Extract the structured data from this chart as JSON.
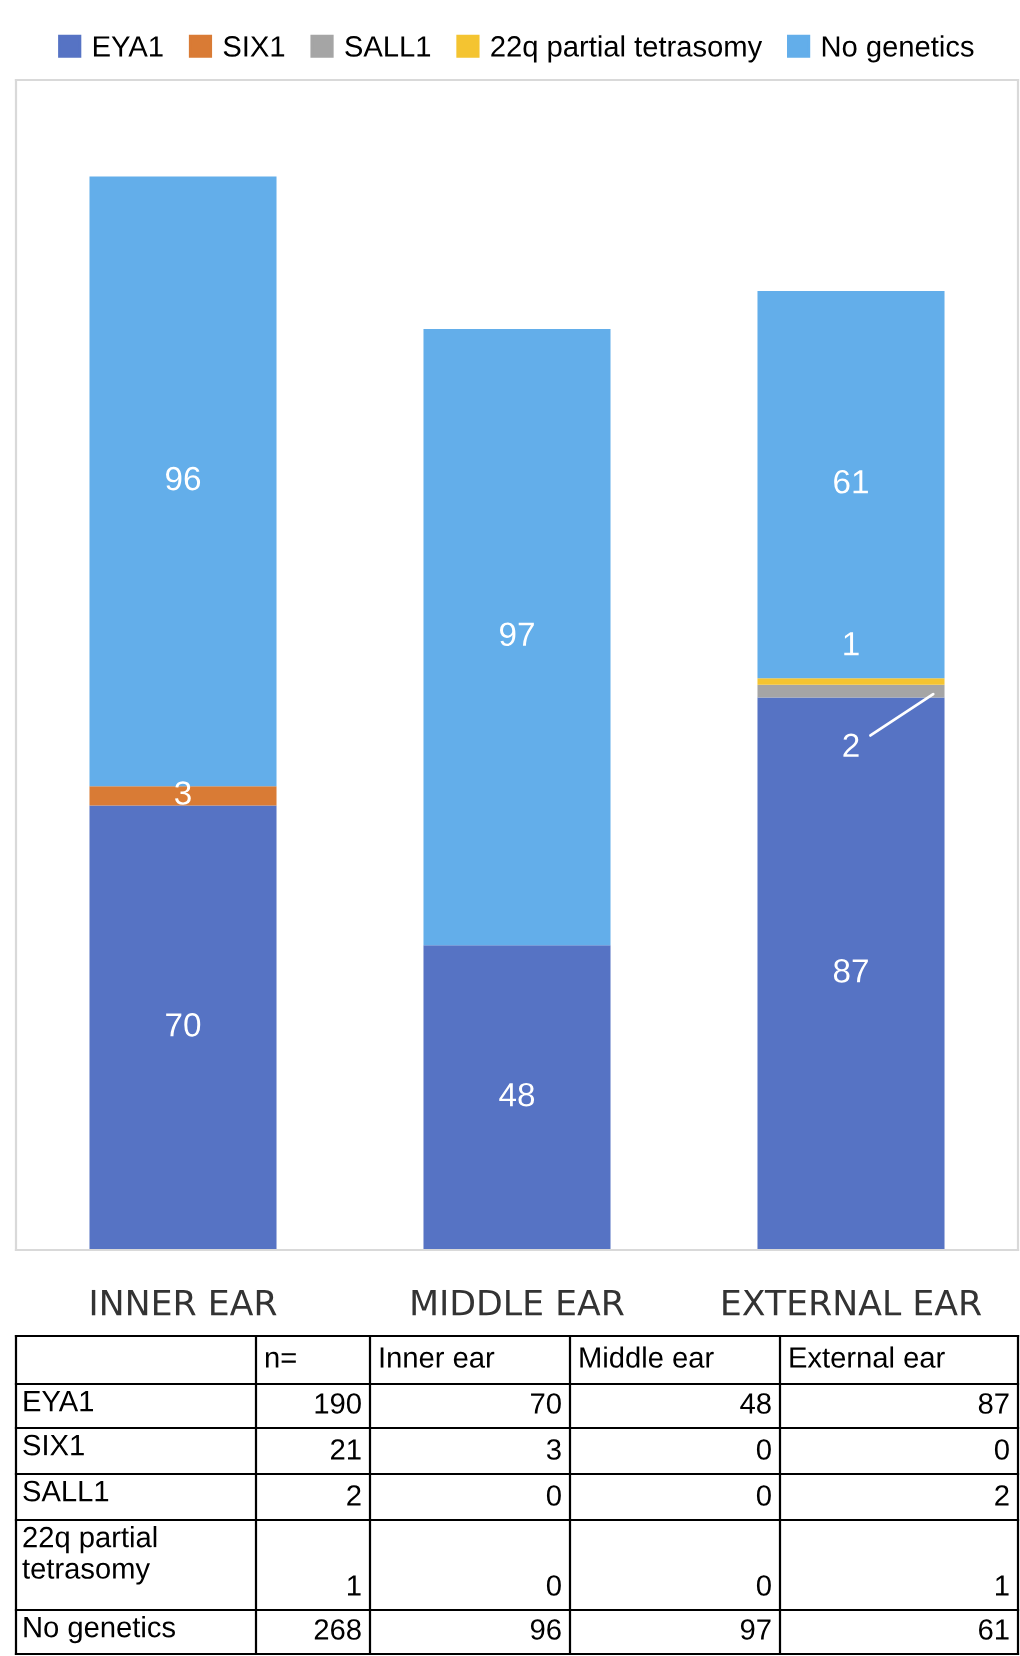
{
  "chart_data": {
    "type": "bar",
    "stacked": true,
    "legend": "top",
    "categories": [
      "INNER EAR",
      "MIDDLE EAR",
      "EXTERNAL EAR"
    ],
    "series": [
      {
        "name": "EYA1",
        "color": "#5673c4",
        "values": [
          70,
          48,
          87
        ],
        "value_labels": [
          "70",
          "48",
          "87"
        ]
      },
      {
        "name": "SIX1",
        "color": "#d97b35",
        "values": [
          3,
          0,
          0
        ],
        "value_labels": [
          "3",
          null,
          null
        ]
      },
      {
        "name": "SALL1",
        "color": "#a5a5a5",
        "values": [
          0,
          0,
          2
        ],
        "value_labels": [
          null,
          null,
          "2"
        ]
      },
      {
        "name": "22q partial tetrasomy",
        "color": "#f4c431",
        "values": [
          0,
          0,
          1
        ],
        "value_labels": [
          null,
          null,
          "1"
        ]
      },
      {
        "name": "No genetics",
        "color": "#63aeea",
        "values": [
          96,
          97,
          61
        ],
        "value_labels": [
          "96",
          "97",
          "61"
        ]
      }
    ],
    "annotations": [
      "n=",
      "Inner ear",
      "Middle ear",
      "External ear",
      "190",
      "70",
      "48",
      "87",
      "21",
      "3",
      "0",
      "0",
      "2",
      "0",
      "0",
      "2",
      "1",
      "0",
      "0",
      "1",
      "268",
      "96",
      "97",
      "61"
    ]
  }
}
